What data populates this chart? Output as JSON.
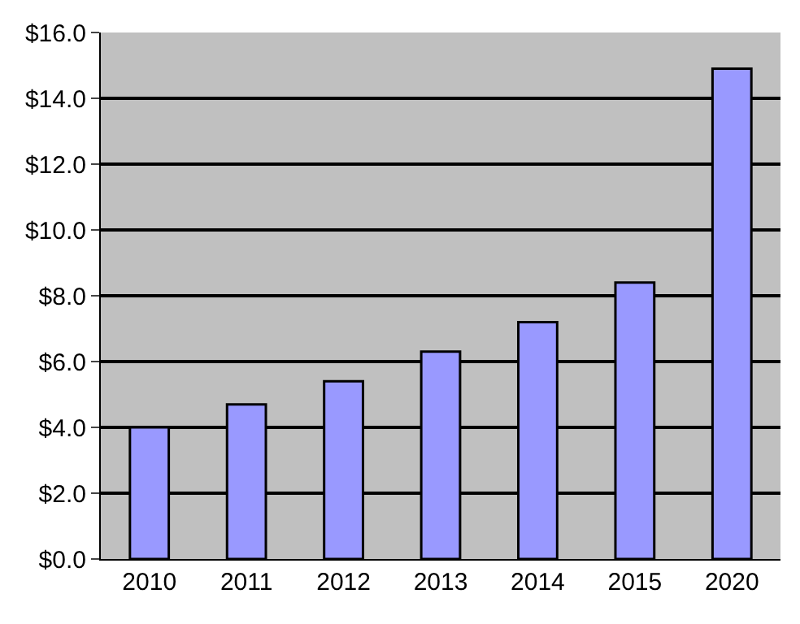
{
  "chart_data": {
    "type": "bar",
    "categories": [
      "2010",
      "2011",
      "2012",
      "2013",
      "2014",
      "2015",
      "2020"
    ],
    "values": [
      4.0,
      4.7,
      5.4,
      6.3,
      7.2,
      8.4,
      14.9
    ],
    "color": "#9999ff",
    "ylim": [
      0,
      16
    ],
    "yticks": [
      {
        "value": 0,
        "label": "$0.0"
      },
      {
        "value": 2,
        "label": "$2.0"
      },
      {
        "value": 4,
        "label": "$4.0"
      },
      {
        "value": 6,
        "label": "$6.0"
      },
      {
        "value": 8,
        "label": "$8.0"
      },
      {
        "value": 10,
        "label": "$10.0"
      },
      {
        "value": 12,
        "label": "$12.0"
      },
      {
        "value": 14,
        "label": "$14.0"
      },
      {
        "value": 16,
        "label": "$16.0"
      }
    ],
    "grid": "y",
    "legend": false
  }
}
